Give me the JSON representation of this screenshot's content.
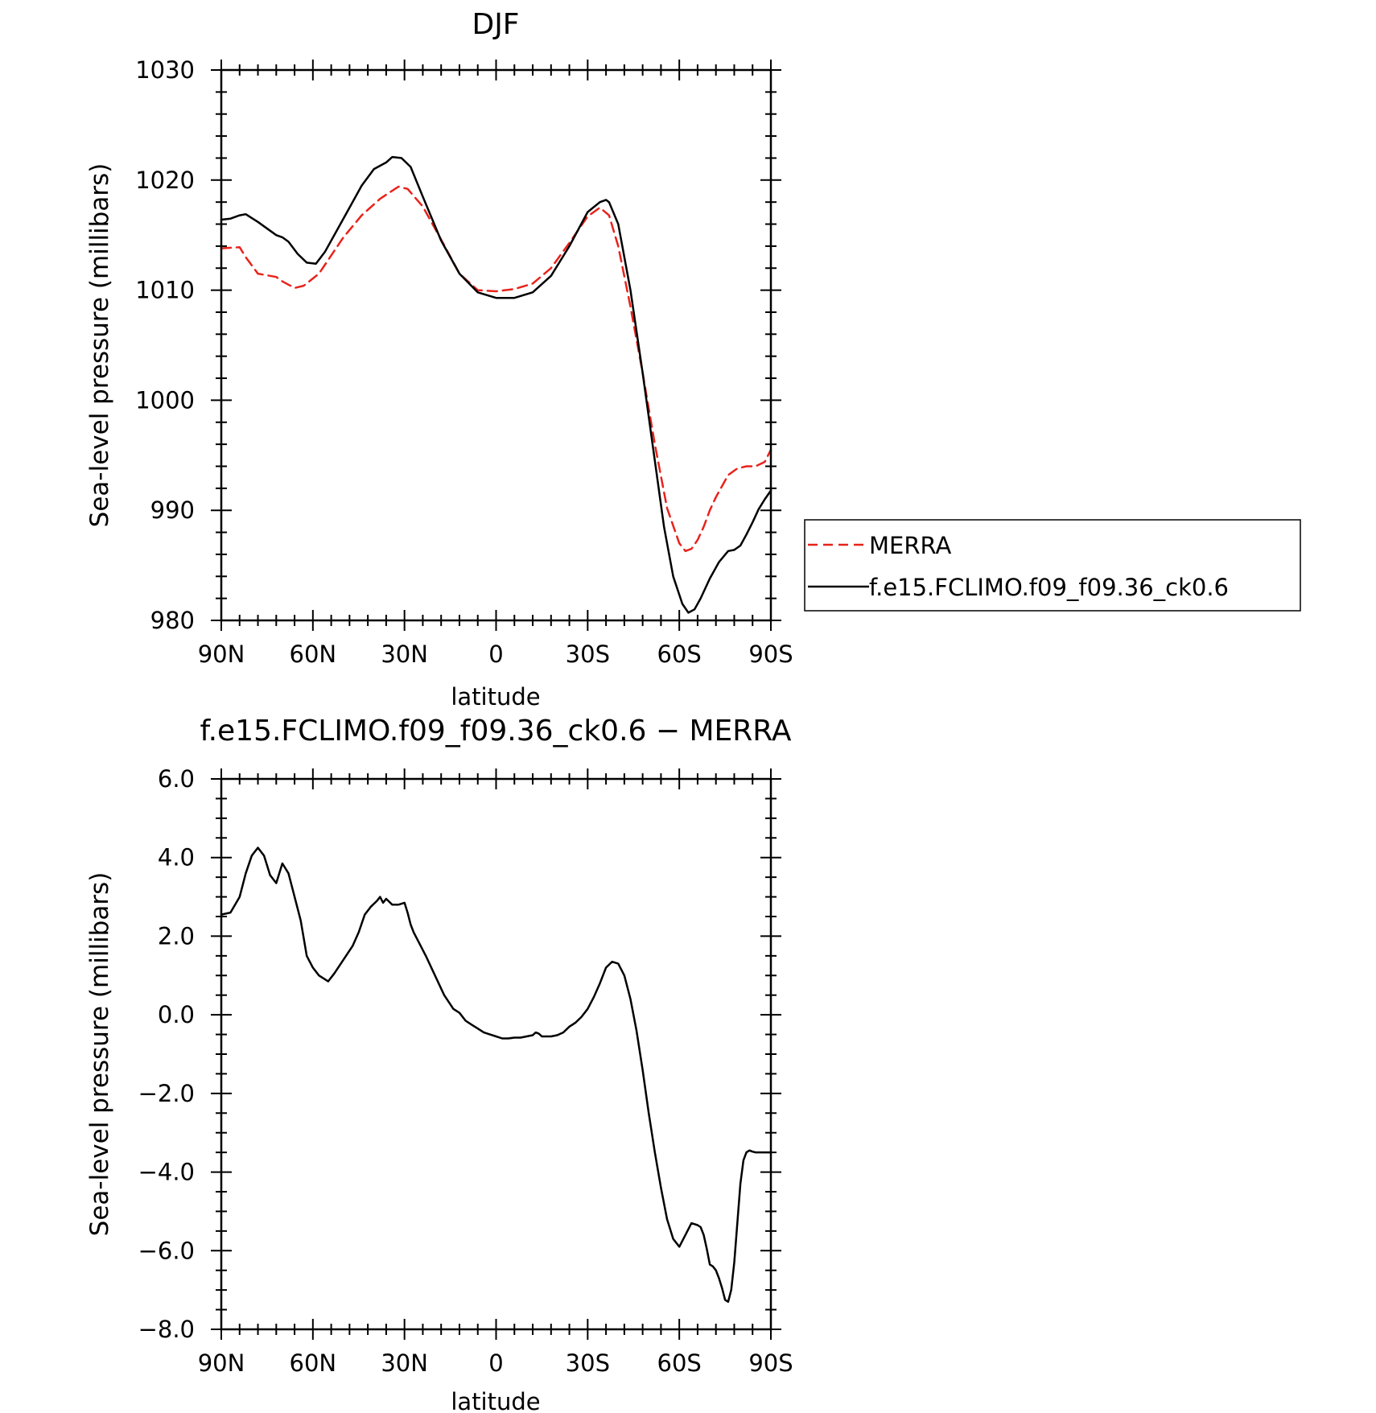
{
  "chart_data": [
    {
      "type": "line",
      "title": "DJF",
      "xlabel": "latitude",
      "ylabel": "Sea-level pressure (millibars)",
      "x_ticks": [
        "90N",
        "60N",
        "30N",
        "0",
        "30S",
        "60S",
        "90S"
      ],
      "y_ticks": [
        "1030",
        "1020",
        "1010",
        "1000",
        "990",
        "980"
      ],
      "xlim": [
        90,
        -90
      ],
      "ylim": [
        980,
        1030
      ],
      "grid": false,
      "legend_position": "right",
      "series": [
        {
          "name": "MERRA",
          "color": "#e8231c",
          "style": "dashed",
          "x": [
            90,
            84,
            82,
            78,
            72,
            70,
            66,
            63,
            58,
            50,
            44,
            38,
            32,
            29,
            24,
            18,
            12,
            6,
            0,
            -6,
            -12,
            -18,
            -24,
            -30,
            -34,
            -37,
            -40,
            -44,
            -48,
            -52,
            -56,
            -60,
            -62,
            -64,
            -66,
            -68,
            -70,
            -72,
            -76,
            -79,
            -82,
            -85,
            -88,
            -90
          ],
          "values": [
            1013.8,
            1013.9,
            1013.0,
            1011.5,
            1011.2,
            1010.8,
            1010.2,
            1010.4,
            1011.5,
            1014.8,
            1016.8,
            1018.3,
            1019.4,
            1019.2,
            1017.6,
            1014.6,
            1011.5,
            1010.0,
            1009.9,
            1010.1,
            1010.6,
            1012.0,
            1014.3,
            1016.7,
            1017.5,
            1016.8,
            1014.0,
            1008.5,
            1002.5,
            996.0,
            990.2,
            987.0,
            986.3,
            986.5,
            987.3,
            988.5,
            990.0,
            991.2,
            993.2,
            993.8,
            994.0,
            994.0,
            994.4,
            995.5
          ]
        },
        {
          "name": "f.e15.FCLIMO.f09_f09.36_ck0.6",
          "color": "#000000",
          "style": "solid",
          "x": [
            90,
            87,
            84,
            82,
            78,
            72,
            70,
            68,
            65,
            62,
            59,
            56,
            52,
            48,
            44,
            40,
            36,
            34,
            31,
            28,
            24,
            18,
            12,
            6,
            0,
            -6,
            -12,
            -18,
            -24,
            -30,
            -34,
            -36,
            -37,
            -40,
            -44,
            -48,
            -52,
            -55,
            -58,
            -61,
            -63,
            -65,
            -67,
            -70,
            -73,
            -76,
            -78,
            -80,
            -82,
            -84,
            -86,
            -88,
            -90
          ],
          "values": [
            1016.4,
            1016.5,
            1016.8,
            1016.9,
            1016.2,
            1015.0,
            1014.8,
            1014.4,
            1013.3,
            1012.5,
            1012.4,
            1013.5,
            1015.5,
            1017.5,
            1019.5,
            1021.0,
            1021.6,
            1022.1,
            1022.0,
            1021.2,
            1018.5,
            1014.5,
            1011.5,
            1009.8,
            1009.3,
            1009.3,
            1009.8,
            1011.3,
            1014.0,
            1017.1,
            1018.0,
            1018.2,
            1018.0,
            1016.0,
            1010.0,
            1002.5,
            994.5,
            988.5,
            984.0,
            981.5,
            980.7,
            981.0,
            982.0,
            983.8,
            985.3,
            986.3,
            986.4,
            986.8,
            987.8,
            988.9,
            990.1,
            991.0,
            991.8
          ]
        }
      ]
    },
    {
      "type": "line",
      "title": "f.e15.FCLIMO.f09_f09.36_ck0.6 − MERRA",
      "xlabel": "latitude",
      "ylabel": "Sea-level pressure (millibars)",
      "x_ticks": [
        "90N",
        "60N",
        "30N",
        "0",
        "30S",
        "60S",
        "90S"
      ],
      "y_ticks": [
        "6.0",
        "4.0",
        "2.0",
        "0.0",
        "−2.0",
        "−4.0",
        "−6.0",
        "−8.0"
      ],
      "xlim": [
        90,
        -90
      ],
      "ylim": [
        -8,
        6
      ],
      "grid": false,
      "series": [
        {
          "color": "#000000",
          "style": "solid",
          "x": [
            90,
            87,
            84,
            82,
            80,
            78,
            76,
            74,
            72,
            70,
            68,
            66,
            64,
            62,
            60,
            58,
            55,
            53,
            50,
            47,
            45,
            43,
            41,
            39,
            38,
            37,
            36,
            34,
            32,
            30,
            29,
            28,
            27,
            25,
            23,
            20,
            17,
            14,
            12,
            10,
            8,
            6,
            4,
            2,
            0,
            -2,
            -4,
            -6,
            -8,
            -10,
            -12,
            -13,
            -14,
            -15,
            -16,
            -18,
            -20,
            -22,
            -24,
            -26,
            -28,
            -30,
            -32,
            -34,
            -36,
            -38,
            -40,
            -42,
            -44,
            -46,
            -48,
            -50,
            -52,
            -54,
            -56,
            -58,
            -60,
            -62,
            -64,
            -66,
            -67,
            -68,
            -69,
            -70,
            -71,
            -72,
            -73,
            -74,
            -75,
            -76,
            -77,
            -78,
            -79,
            -80,
            -81,
            -82,
            -83,
            -84,
            -85,
            -86,
            -87,
            -88,
            -89,
            -90
          ],
          "values": [
            2.55,
            2.6,
            3.0,
            3.6,
            4.05,
            4.25,
            4.05,
            3.55,
            3.35,
            3.85,
            3.6,
            3.0,
            2.4,
            1.5,
            1.2,
            1.0,
            0.85,
            1.05,
            1.4,
            1.75,
            2.1,
            2.55,
            2.75,
            2.9,
            3.0,
            2.85,
            2.95,
            2.8,
            2.8,
            2.85,
            2.6,
            2.3,
            2.1,
            1.8,
            1.5,
            1.0,
            0.5,
            0.15,
            0.05,
            -0.15,
            -0.25,
            -0.35,
            -0.45,
            -0.5,
            -0.55,
            -0.6,
            -0.6,
            -0.58,
            -0.58,
            -0.55,
            -0.52,
            -0.45,
            -0.48,
            -0.55,
            -0.55,
            -0.55,
            -0.52,
            -0.45,
            -0.3,
            -0.2,
            -0.05,
            0.15,
            0.45,
            0.8,
            1.2,
            1.35,
            1.3,
            1.0,
            0.4,
            -0.4,
            -1.4,
            -2.5,
            -3.5,
            -4.4,
            -5.2,
            -5.7,
            -5.9,
            -5.6,
            -5.3,
            -5.35,
            -5.4,
            -5.6,
            -5.95,
            -6.35,
            -6.4,
            -6.5,
            -6.7,
            -6.95,
            -7.25,
            -7.3,
            -7.0,
            -6.3,
            -5.3,
            -4.3,
            -3.7,
            -3.5,
            -3.45,
            -3.48,
            -3.5,
            -3.5,
            -3.5,
            -3.5,
            -3.5,
            -3.5
          ]
        }
      ]
    }
  ]
}
